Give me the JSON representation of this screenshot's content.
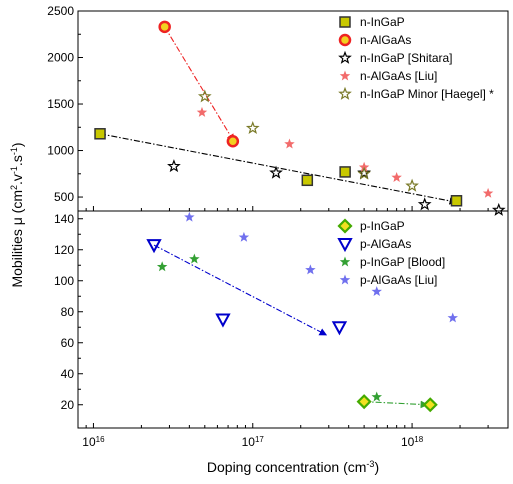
{
  "chart_data": [
    {
      "type": "scatter",
      "title": "",
      "xlabel": "Doping concentration (cm",
      "xlabel_sup": "-3",
      "xlabel_tail": ")",
      "ylabel": "Mobilities μ (cm",
      "ylabel_sup1": "2",
      "ylabel_mid": ".v",
      "ylabel_sup2": "-1",
      "ylabel_mid2": ".s",
      "ylabel_sup3": "-1",
      "ylabel_tail": ")",
      "x_scale": "log",
      "xlim": [
        8000000000000000.0,
        4e+18
      ],
      "ylim": [
        350,
        2500
      ],
      "y_ticks": [
        500,
        1000,
        1500,
        2000,
        2500
      ],
      "x_ticks": [
        {
          "base": "10",
          "exp": "16",
          "value": 1e+16
        },
        {
          "base": "10",
          "exp": "17",
          "value": 1e+17
        },
        {
          "base": "10",
          "exp": "18",
          "value": 1e+18
        }
      ],
      "legend_position": "top-right",
      "series": [
        {
          "name": "n-InGaP",
          "marker": "square",
          "color": "#c8c800",
          "x": [
            1.1e+16,
            2.2e+17,
            3.8e+17,
            1.9e+18
          ],
          "y": [
            1180,
            680,
            770,
            460
          ]
        },
        {
          "name": "n-AlGaAs",
          "marker": "circle",
          "color": "#ee2222",
          "x": [
            2.8e+16,
            7.5e+16
          ],
          "y": [
            2330,
            1100
          ]
        },
        {
          "name": "n-InGaP [Shitara]",
          "marker": "star-open",
          "color": "#000000",
          "x": [
            3.2e+16,
            1.4e+17,
            5e+17,
            1.2e+18,
            3.5e+18
          ],
          "y": [
            830,
            760,
            760,
            420,
            360
          ]
        },
        {
          "name": "n-AlGaAs [Liu]",
          "marker": "star",
          "color": "#f26b6b",
          "x": [
            4.8e+16,
            1.7e+17,
            5e+17,
            8e+17,
            3e+18
          ],
          "y": [
            1410,
            1070,
            820,
            710,
            540
          ]
        },
        {
          "name": "n-InGaP Minor [Haegel] *",
          "marker": "star-open",
          "color": "#7a7a28",
          "x": [
            5e+16,
            1e+17,
            5e+17,
            1e+18
          ],
          "y": [
            1580,
            1240,
            750,
            620
          ]
        }
      ],
      "trend_lines": [
        {
          "color": "#000000",
          "x": [
            1.1e+16,
            1.9e+18
          ],
          "y": [
            1180,
            445
          ]
        },
        {
          "color": "#ee2222",
          "x": [
            2.8e+16,
            7.6e+16
          ],
          "y": [
            2330,
            1100
          ]
        }
      ]
    },
    {
      "type": "scatter",
      "title": "",
      "x_scale": "log",
      "xlim": [
        8000000000000000.0,
        4e+18
      ],
      "ylim": [
        5,
        145
      ],
      "y_ticks": [
        20,
        40,
        60,
        80,
        100,
        120,
        140
      ],
      "legend_position": "top-right",
      "series": [
        {
          "name": "p-InGaP",
          "marker": "diamond",
          "color": "#44aa00",
          "x": [
            5e+17,
            1.3e+18
          ],
          "y": [
            22,
            20
          ]
        },
        {
          "name": "p-AlGaAs",
          "marker": "triangle-down",
          "color": "#0000cc",
          "x": [
            2.4e+16,
            6.5e+16,
            3.5e+17
          ],
          "y": [
            123,
            75,
            70
          ]
        },
        {
          "name": "p-InGaP [Blood]",
          "marker": "star",
          "color": "#33a033",
          "x": [
            2.7e+16,
            4.3e+16,
            6e+17
          ],
          "y": [
            109,
            114,
            25
          ]
        },
        {
          "name": "p-AlGaAs [Liu]",
          "marker": "star",
          "color": "#7070ee",
          "x": [
            4e+16,
            8.8e+16,
            2.3e+17,
            6e+17,
            1.8e+18
          ],
          "y": [
            141,
            128,
            107,
            93,
            76
          ]
        }
      ],
      "trend_lines": [
        {
          "color": "#0000cc",
          "x": [
            2.4e+16,
            2.9e+17
          ],
          "y": [
            123,
            65
          ]
        },
        {
          "color": "#33a033",
          "x": [
            5e+17,
            1.25e+18
          ],
          "y": [
            22,
            20
          ]
        }
      ]
    }
  ]
}
